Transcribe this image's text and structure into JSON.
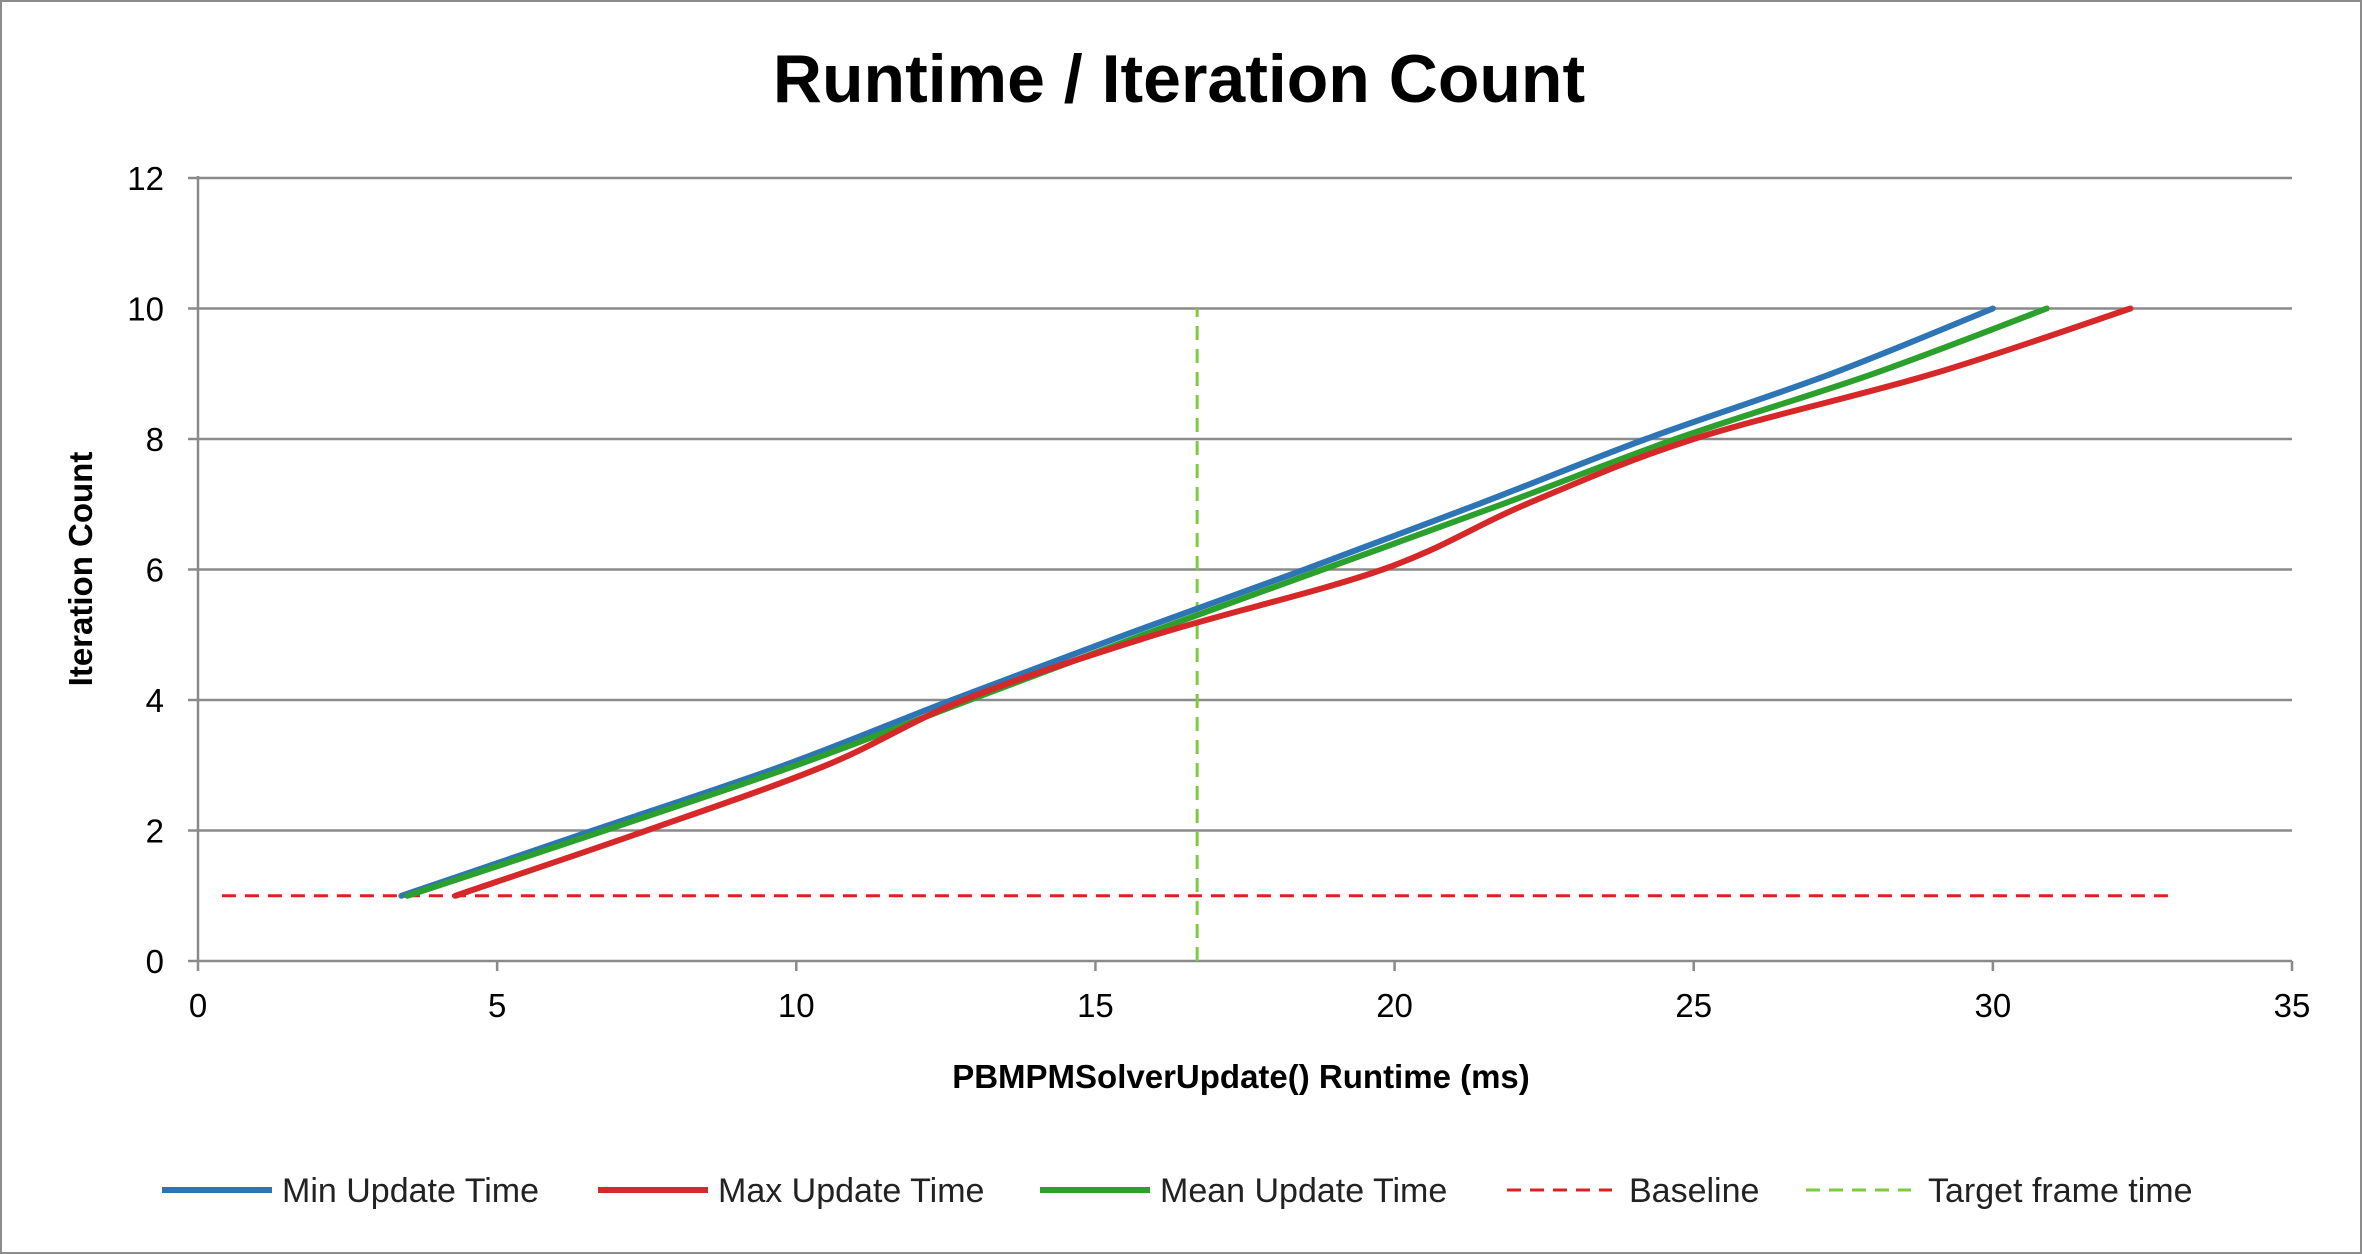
{
  "chart_data": {
    "type": "line",
    "title": "Runtime / Iteration Count",
    "xlabel": "PBMPMSolverUpdate() Runtime (ms)",
    "ylabel": "Iteration Count",
    "xlim": [
      0,
      35
    ],
    "ylim": [
      0,
      12
    ],
    "x_ticks": [
      "0",
      "5",
      "10",
      "15",
      "20",
      "25",
      "30",
      "35"
    ],
    "y_ticks": [
      "0",
      "2",
      "4",
      "6",
      "8",
      "10",
      "12"
    ],
    "grid": "horizontal",
    "legend_position": "bottom",
    "series": [
      {
        "name": "Min Update Time",
        "color": "#2E75B6",
        "style": "solid",
        "points": [
          [
            3.4,
            1
          ],
          [
            6.6,
            2
          ],
          [
            9.8,
            3
          ],
          [
            12.6,
            4
          ],
          [
            15.5,
            5
          ],
          [
            18.5,
            6
          ],
          [
            21.4,
            7
          ],
          [
            24.2,
            8
          ],
          [
            27.3,
            9
          ],
          [
            30.0,
            10
          ]
        ]
      },
      {
        "name": "Max Update Time",
        "color": "#D62828",
        "style": "solid",
        "points": [
          [
            4.3,
            1
          ],
          [
            7.5,
            2
          ],
          [
            10.5,
            3
          ],
          [
            12.8,
            4
          ],
          [
            16.0,
            5
          ],
          [
            19.8,
            6
          ],
          [
            22.2,
            7
          ],
          [
            25.0,
            8
          ],
          [
            29.0,
            9
          ],
          [
            32.3,
            10
          ]
        ]
      },
      {
        "name": "Mean Update Time",
        "color": "#2CA02C",
        "style": "solid",
        "points": [
          [
            3.5,
            1
          ],
          [
            6.8,
            2
          ],
          [
            10.0,
            3
          ],
          [
            12.9,
            4
          ],
          [
            15.8,
            5
          ],
          [
            18.8,
            6
          ],
          [
            21.8,
            7
          ],
          [
            24.7,
            8
          ],
          [
            28.0,
            9
          ],
          [
            30.9,
            10
          ]
        ]
      },
      {
        "name": "Baseline",
        "color": "#E02020",
        "style": "dashed",
        "points": [
          [
            0.4,
            1
          ],
          [
            33.0,
            1
          ]
        ]
      },
      {
        "name": "Target frame time",
        "color": "#7DCB3C",
        "style": "dashed",
        "points": [
          [
            16.7,
            0
          ],
          [
            16.7,
            10
          ]
        ]
      }
    ]
  }
}
